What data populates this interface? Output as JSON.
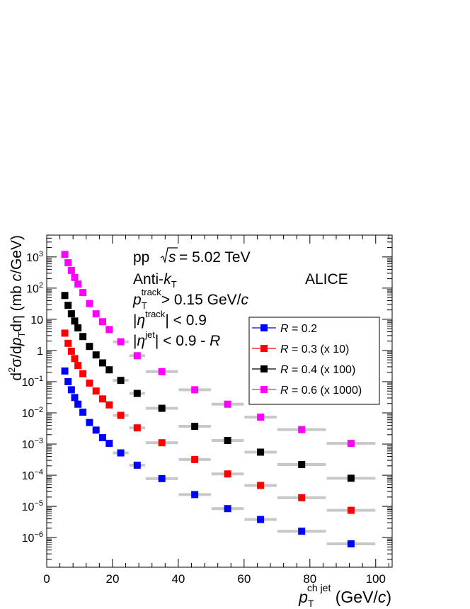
{
  "chart_data": {
    "type": "scatter",
    "experiment": "ALICE",
    "annotations": {
      "collision": "pp",
      "energy_value": "= 5.02 TeV",
      "algo_prefix": "Anti-",
      "algo_k": "k",
      "algo_sub": "T",
      "track_p": "p",
      "track_sub": "T",
      "track_sup": "track",
      "track_cut": "> 0.15 GeV/",
      "track_c": "c",
      "eta_track_sup": "track",
      "eta_track_cut": "| < 0.9",
      "eta_jet_sup": "jet",
      "eta_jet_cut": "| < 0.9 - ",
      "eta_jet_R": "R"
    },
    "xlabel": {
      "p": "p",
      "sub": "T",
      "sup": "ch jet",
      "unit": "(GeV/",
      "unit_c": "c",
      "close": ")"
    },
    "ylabel": {
      "d2": "d",
      "sup2": "2",
      "sigma": "σ/d",
      "p": "p",
      "sub": "T",
      "eta": "dη (mb ",
      "c": "c",
      "unit": "/GeV)"
    },
    "xlim": [
      0,
      105
    ],
    "ylim_log10": [
      -6.95,
      3.7
    ],
    "x_ticks": [
      "0",
      "20",
      "40",
      "60",
      "80",
      "100"
    ],
    "x_tick_values": [
      0,
      20,
      40,
      60,
      80,
      100
    ],
    "y_tick_labels": [
      {
        "exp": 3,
        "base": "10",
        "sup": "3"
      },
      {
        "exp": 2,
        "base": "10",
        "sup": "2"
      },
      {
        "exp": 1,
        "base": "10",
        "sup": ""
      },
      {
        "exp": 0,
        "base": "1",
        "sup": ""
      },
      {
        "exp": -1,
        "base": "10",
        "sup": "−1"
      },
      {
        "exp": -2,
        "base": "10",
        "sup": "−2"
      },
      {
        "exp": -3,
        "base": "10",
        "sup": "−3"
      },
      {
        "exp": -4,
        "base": "10",
        "sup": "−4"
      },
      {
        "exp": -5,
        "base": "10",
        "sup": "−5"
      },
      {
        "exp": -6,
        "base": "10",
        "sup": "−6"
      }
    ],
    "bins": [
      [
        5,
        6
      ],
      [
        6,
        7
      ],
      [
        7,
        8
      ],
      [
        8,
        9
      ],
      [
        9,
        10
      ],
      [
        10,
        12
      ],
      [
        12,
        14
      ],
      [
        14,
        16
      ],
      [
        16,
        18
      ],
      [
        18,
        20
      ],
      [
        20,
        25
      ],
      [
        25,
        30
      ],
      [
        30,
        40
      ],
      [
        40,
        50
      ],
      [
        50,
        60
      ],
      [
        60,
        70
      ],
      [
        70,
        85
      ],
      [
        85,
        100
      ]
    ],
    "x": [
      5.5,
      6.5,
      7.5,
      8.5,
      9.5,
      11,
      13,
      15,
      17,
      19,
      22.5,
      27.5,
      35,
      45,
      55,
      65,
      77.5,
      92.5
    ],
    "legend_position": "right",
    "series": [
      {
        "name_italic": "R",
        "name_rest": " = 0.2",
        "color": "#0000ff",
        "values": [
          0.22,
          0.1,
          0.055,
          0.031,
          0.019,
          0.0105,
          0.0049,
          0.0028,
          0.0016,
          0.00105,
          0.00052,
          0.00021,
          7.8e-05,
          2.4e-05,
          8.5e-06,
          3.8e-06,
          1.6e-06,
          6.3e-07
        ]
      },
      {
        "name_italic": "R",
        "name_rest": " = 0.3 (x 10)",
        "color": "#ff0000",
        "values": [
          3.6,
          1.7,
          0.95,
          0.55,
          0.33,
          0.18,
          0.09,
          0.05,
          0.028,
          0.018,
          0.0083,
          0.0033,
          0.0011,
          0.00032,
          0.00011,
          4.7e-05,
          1.9e-05,
          7.5e-06
        ]
      },
      {
        "name_italic": "R",
        "name_rest": " = 0.4 (x 100)",
        "color": "#000000",
        "values": [
          58,
          28,
          15,
          8.8,
          5.3,
          2.8,
          1.35,
          0.72,
          0.4,
          0.24,
          0.11,
          0.042,
          0.014,
          0.0037,
          0.0013,
          0.00055,
          0.00022,
          8e-05
        ]
      },
      {
        "name_italic": "R",
        "name_rest": " = 0.6 (x 1000)",
        "color": "#ff00ff",
        "values": [
          1200,
          650,
          370,
          220,
          135,
          72,
          32,
          15,
          8.4,
          4.7,
          1.9,
          0.68,
          0.21,
          0.055,
          0.019,
          0.0073,
          0.0029,
          0.00105
        ]
      }
    ]
  }
}
